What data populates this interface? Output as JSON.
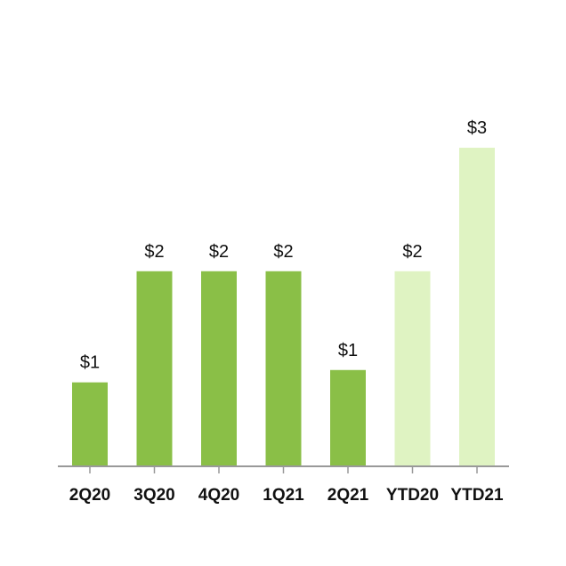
{
  "chart_data": {
    "type": "bar",
    "title": "",
    "xlabel": "",
    "ylabel": "",
    "categories": [
      "2Q20",
      "3Q20",
      "4Q20",
      "1Q21",
      "2Q21",
      "YTD20",
      "YTD21"
    ],
    "values": [
      0.68,
      1.58,
      1.58,
      1.58,
      0.78,
      1.58,
      2.58
    ],
    "data_labels": [
      "$1",
      "$2",
      "$2",
      "$2",
      "$1",
      "$2",
      "$3"
    ],
    "ylim": [
      0,
      3.2
    ],
    "grid": false,
    "colors": {
      "quarterly": "#8abf47",
      "ytd": "#dff3c2",
      "axis": "#999999"
    },
    "bar_color_groups": [
      "quarterly",
      "quarterly",
      "quarterly",
      "quarterly",
      "quarterly",
      "ytd",
      "ytd"
    ]
  }
}
